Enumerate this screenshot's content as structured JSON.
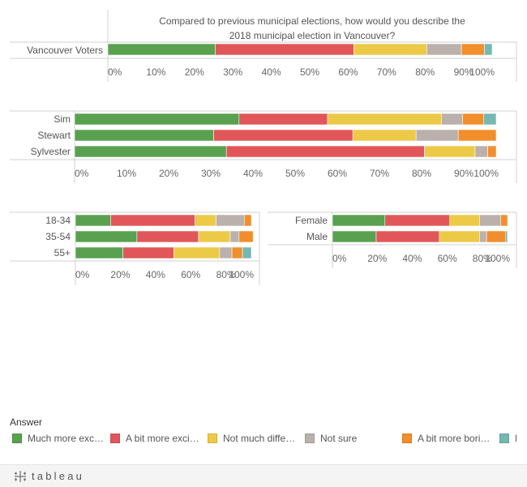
{
  "chart_data": [
    {
      "type": "bar",
      "stacked": true,
      "orientation": "horizontal",
      "title": "Compared to previous municipal elections, how would you describe the 2018 municipal election in Vancouver?",
      "categories": [
        "Vancouver Voters"
      ],
      "xlim": [
        0,
        100
      ],
      "ticks": [
        "0%",
        "10%",
        "20%",
        "30%",
        "40%",
        "50%",
        "60%",
        "70%",
        "80%",
        "90%",
        "100%"
      ],
      "series": [
        {
          "name": "Much more exc…",
          "values": [
            28
          ]
        },
        {
          "name": "A bit more exci…",
          "values": [
            36
          ]
        },
        {
          "name": "Not much diffe…",
          "values": [
            19
          ]
        },
        {
          "name": "Not sure",
          "values": [
            9
          ]
        },
        {
          "name": "A bit more bori…",
          "values": [
            6
          ]
        },
        {
          "name": "M",
          "values": [
            2
          ]
        }
      ]
    },
    {
      "type": "bar",
      "stacked": true,
      "orientation": "horizontal",
      "categories": [
        "Sim",
        "Stewart",
        "Sylvester"
      ],
      "xlim": [
        0,
        100
      ],
      "ticks": [
        "0%",
        "10%",
        "20%",
        "30%",
        "40%",
        "50%",
        "60%",
        "70%",
        "80%",
        "90%",
        "100%"
      ],
      "series": [
        {
          "name": "Much more exc…",
          "values": [
            39,
            33,
            36
          ]
        },
        {
          "name": "A bit more exci…",
          "values": [
            21,
            33,
            47
          ]
        },
        {
          "name": "Not much diffe…",
          "values": [
            27,
            15,
            12
          ]
        },
        {
          "name": "Not sure",
          "values": [
            5,
            10,
            3
          ]
        },
        {
          "name": "A bit more bori…",
          "values": [
            5,
            9,
            2
          ]
        },
        {
          "name": "M",
          "values": [
            3,
            0,
            0
          ]
        }
      ]
    },
    {
      "type": "bar",
      "stacked": true,
      "orientation": "horizontal",
      "categories": [
        "18-34",
        "35-54",
        "55+"
      ],
      "xlim": [
        0,
        100
      ],
      "ticks": [
        "0%",
        "20%",
        "40%",
        "60%",
        "80%",
        "100%"
      ],
      "series": [
        {
          "name": "Much more exc…",
          "values": [
            20,
            35,
            27
          ]
        },
        {
          "name": "A bit more exci…",
          "values": [
            48,
            35,
            29
          ]
        },
        {
          "name": "Not much diffe…",
          "values": [
            12,
            18,
            26
          ]
        },
        {
          "name": "Not sure",
          "values": [
            16,
            5,
            7
          ]
        },
        {
          "name": "A bit more bori…",
          "values": [
            4,
            8,
            6
          ]
        },
        {
          "name": "M",
          "values": [
            0,
            0,
            5
          ]
        }
      ]
    },
    {
      "type": "bar",
      "stacked": true,
      "orientation": "horizontal",
      "categories": [
        "Female",
        "Male"
      ],
      "xlim": [
        0,
        100
      ],
      "ticks": [
        "0%",
        "20%",
        "40%",
        "60%",
        "80%",
        "100%"
      ],
      "series": [
        {
          "name": "Much more exc…",
          "values": [
            30,
            25
          ]
        },
        {
          "name": "A bit more exci…",
          "values": [
            37,
            36
          ]
        },
        {
          "name": "Not much diffe…",
          "values": [
            17,
            23
          ]
        },
        {
          "name": "Not sure",
          "values": [
            12,
            4
          ]
        },
        {
          "name": "A bit more bori…",
          "values": [
            4,
            11
          ]
        },
        {
          "name": "M",
          "values": [
            0,
            1
          ]
        }
      ]
    }
  ],
  "legend": {
    "title": "Answer",
    "items": [
      {
        "label": "Much more exc…",
        "color": "#59a14f"
      },
      {
        "label": "A bit more exci…",
        "color": "#e15759"
      },
      {
        "label": "Not much diffe…",
        "color": "#edc948"
      },
      {
        "label": "Not sure",
        "color": "#bab0ac"
      },
      {
        "label": "A bit more bori…",
        "color": "#f28e2b"
      },
      {
        "label": "M",
        "color": "#76b7b2"
      }
    ]
  },
  "footer": {
    "logo_text": "tableau",
    "logo_icon": "tableau-plus-icon"
  }
}
